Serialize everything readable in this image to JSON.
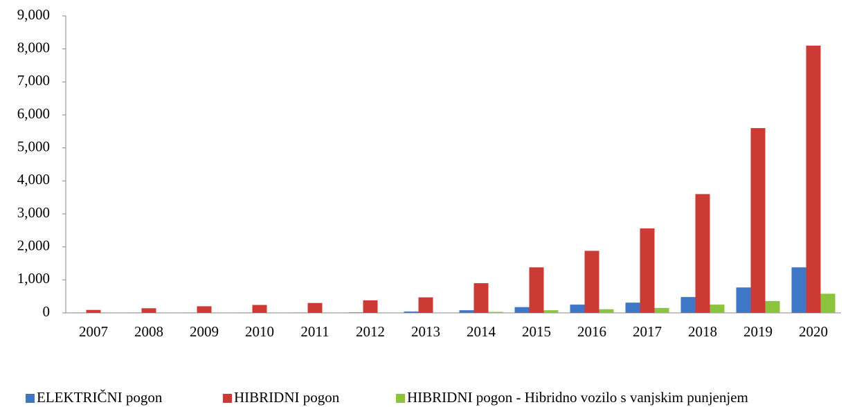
{
  "chart_data": {
    "type": "bar",
    "categories": [
      "2007",
      "2008",
      "2009",
      "2010",
      "2011",
      "2012",
      "2013",
      "2014",
      "2015",
      "2016",
      "2017",
      "2018",
      "2019",
      "2020"
    ],
    "series": [
      {
        "name": "ELEKTRIČNI pogon",
        "color": "#3f77c6",
        "values": [
          5,
          5,
          5,
          8,
          10,
          15,
          40,
          80,
          175,
          250,
          310,
          480,
          770,
          1380
        ]
      },
      {
        "name": "HIBRIDNI pogon",
        "color": "#cc3a36",
        "values": [
          90,
          140,
          200,
          240,
          300,
          380,
          470,
          900,
          1380,
          1880,
          2560,
          3600,
          5600,
          8100
        ]
      },
      {
        "name": "HIBRIDNI pogon - Hibridno vozilo s vanjskim punjenjem",
        "color": "#8cc43e",
        "values": [
          0,
          0,
          0,
          0,
          0,
          0,
          5,
          30,
          80,
          110,
          150,
          250,
          360,
          580
        ]
      }
    ],
    "ylim": [
      0,
      9000
    ],
    "yticks": [
      0,
      {
        "value": 1000,
        "label": "1,000"
      },
      {
        "value": 2000,
        "label": "2,000"
      },
      {
        "value": 3000,
        "label": "3,000"
      },
      {
        "value": 4000,
        "label": "4,000"
      },
      {
        "value": 5000,
        "label": "5,000"
      },
      {
        "value": 6000,
        "label": "6,000"
      },
      {
        "value": 7000,
        "label": "7,000"
      },
      {
        "value": 8000,
        "label": "8,000"
      },
      {
        "value": 9000,
        "label": "9,000"
      }
    ],
    "legend": "bottom"
  }
}
